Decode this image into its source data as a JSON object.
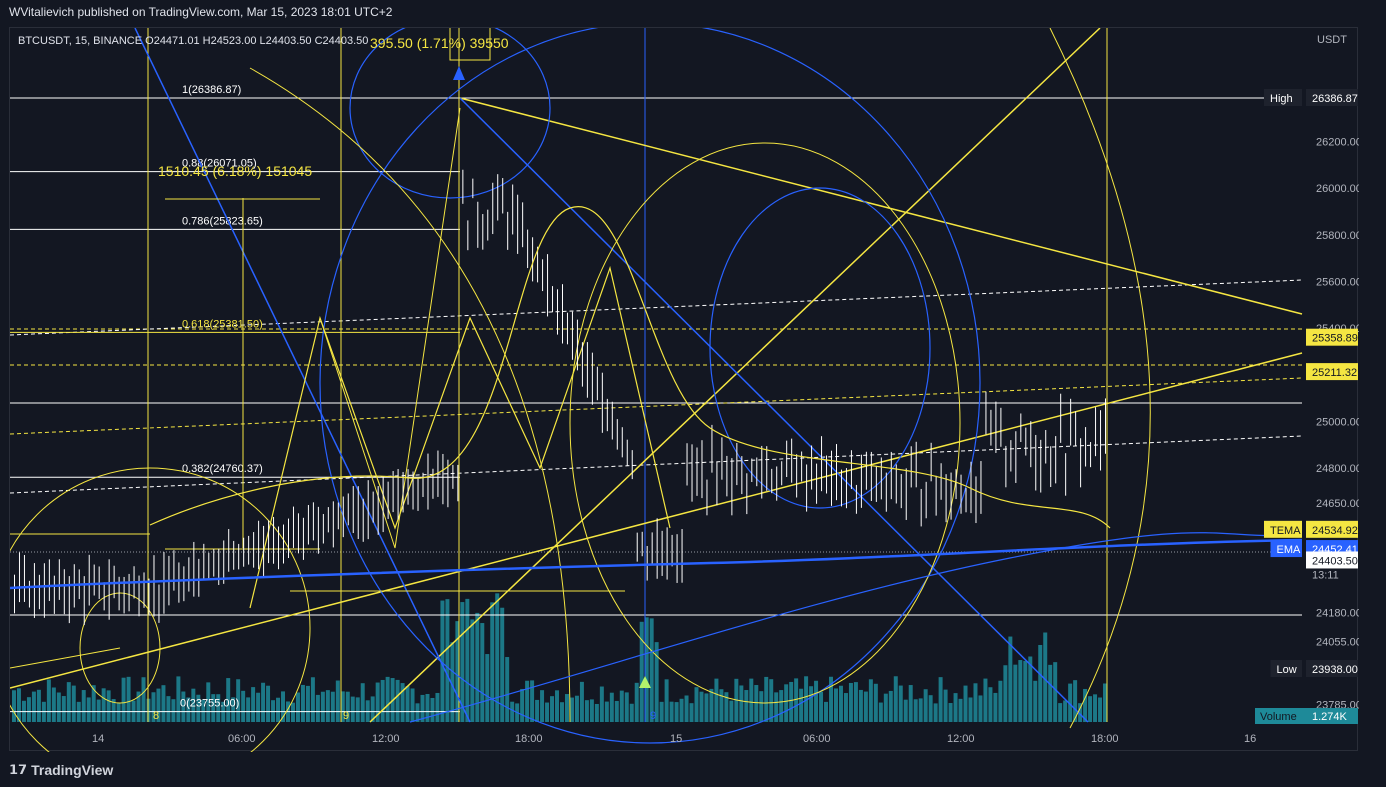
{
  "header": {
    "text": "WVitalievich published on TradingView.com, Mar 15, 2023 18:01 UTC+2"
  },
  "symbol_line": {
    "text": "BTCUSDT, 15, BINANCE  O24471.01  H24523.00  L24403.50  C24403.50"
  },
  "overlay_text": {
    "top": "395.50 (1.71%) 39550",
    "mid": "1510.45 (6.18%) 151045"
  },
  "footer": {
    "brand": "TradingView"
  },
  "colors": {
    "background": "#131722",
    "yellow": "#f5e642",
    "blue": "#2962ff",
    "white": "#ffffff",
    "volume": "#1e8a99",
    "ema": "#2962ff"
  },
  "chart_data": {
    "type": "candlestick",
    "symbol": "BTCUSDT",
    "interval": "15",
    "exchange": "BINANCE",
    "currency": "USDT",
    "ohlc": {
      "open": 24471.01,
      "high": 24523.0,
      "low": 24403.5,
      "close": 24403.5
    },
    "x_ticks": [
      "14",
      "06:00",
      "12:00",
      "18:00",
      "15",
      "06:00",
      "12:00",
      "18:00",
      "16"
    ],
    "y_ticks": [
      26200.0,
      26000.0,
      25800.0,
      25600.0,
      25400.0,
      25000.0,
      24800.0,
      24650.0,
      24180.0,
      24055.0,
      23785.0
    ],
    "y_range": [
      23700,
      26600
    ],
    "price_labels": [
      {
        "label": "High",
        "value": 26386.87
      },
      {
        "label": "",
        "value": 25358.89
      },
      {
        "label": "",
        "value": 25211.32
      },
      {
        "label": "TEMA",
        "value": 24534.92
      },
      {
        "label": "EMA",
        "value": 24452.41
      },
      {
        "label": "",
        "value": 24403.5,
        "sub": "13:11"
      },
      {
        "label": "Low",
        "value": 23938.0
      }
    ],
    "volume": {
      "label": "Volume",
      "value": "1.274K"
    },
    "fib_levels": [
      {
        "label": "1(26386.87)",
        "value": 26386.87
      },
      {
        "label": "0.88(26071.05)",
        "value": 26071.05
      },
      {
        "label": "0.786(25823.65)",
        "value": 25823.65
      },
      {
        "label": "0.618(25381.50)",
        "value": 25381.5
      },
      {
        "label": "0.382(24760.37)",
        "value": 24760.37
      },
      {
        "label": "0(23755.00)",
        "value": 23755.0
      }
    ]
  }
}
